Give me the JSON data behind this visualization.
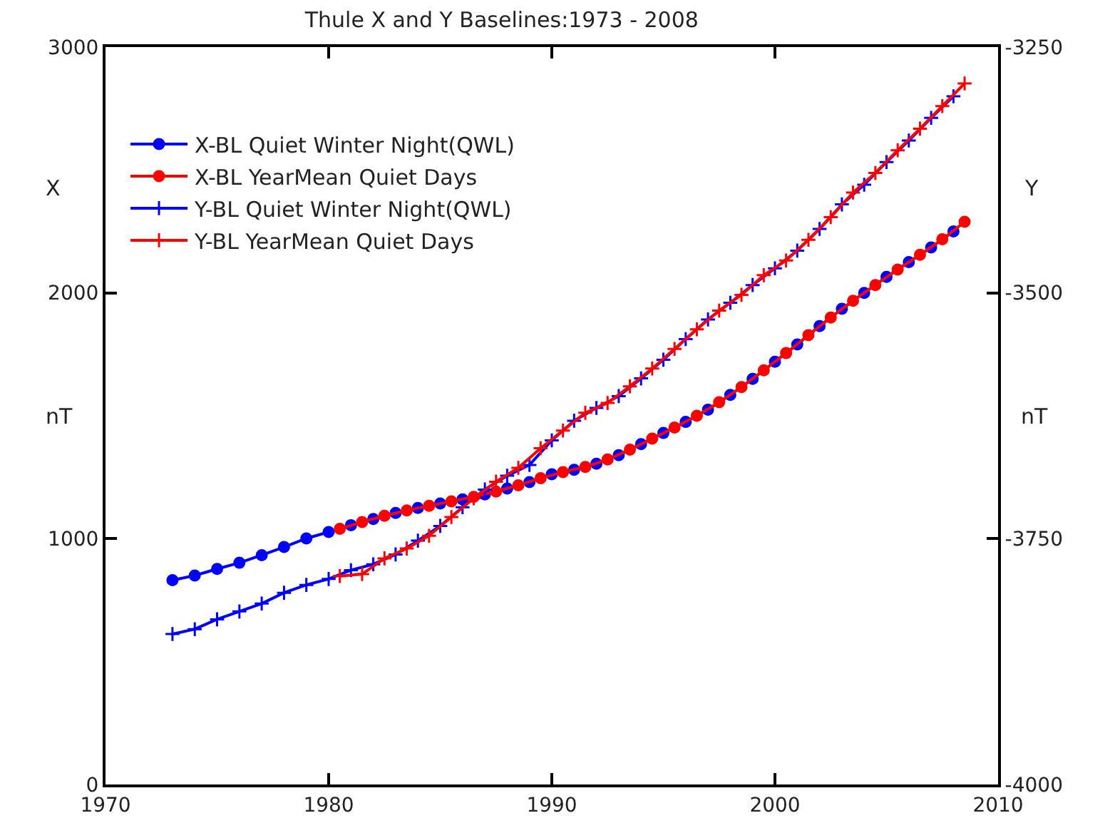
{
  "chart_data": {
    "type": "line",
    "title": "Thule X and Y Baselines:1973 - 2008",
    "ylabel": "X",
    "y2label": "Y",
    "annotations": [
      "nT",
      "nT"
    ],
    "xlim": [
      1970,
      2010
    ],
    "xticks": [
      1970,
      1980,
      1990,
      2000,
      2010
    ],
    "ylim": [
      0,
      3000
    ],
    "yticks": [
      0,
      1000,
      2000,
      3000
    ],
    "y2lim": [
      -4000,
      -3250
    ],
    "y2ticks": [
      -4000,
      -3750,
      -3500,
      -3250
    ],
    "legend": "top left",
    "series": [
      {
        "name": "X-BL Quiet Winter Night(QWL)",
        "color": "#0000ff",
        "marker": "circle",
        "x": [
          1973,
          1974,
          1975,
          1976,
          1977,
          1978,
          1979,
          1980,
          1981,
          1982,
          1983,
          1984,
          1985,
          1986,
          1987,
          1988,
          1989,
          1990,
          1991,
          1992,
          1993,
          1994,
          1995,
          1996,
          1997,
          1998,
          1999,
          2000,
          2001,
          2002,
          2003,
          2004,
          2005,
          2006,
          2007,
          2008
        ],
        "values": [
          831,
          850,
          877,
          902,
          933,
          966,
          1001,
          1027,
          1055,
          1080,
          1105,
          1125,
          1143,
          1160,
          1180,
          1204,
          1230,
          1262,
          1280,
          1305,
          1340,
          1385,
          1430,
          1475,
          1525,
          1585,
          1650,
          1720,
          1790,
          1865,
          1935,
          2000,
          2065,
          2125,
          2185,
          2250
        ]
      },
      {
        "name": "X-BL YearMean Quiet Days",
        "color": "#ff0000",
        "marker": "circle",
        "x": [
          1980.5,
          1981.5,
          1982.5,
          1983.5,
          1984.5,
          1985.5,
          1986.5,
          1987.5,
          1988.5,
          1989.5,
          1990.5,
          1991.5,
          1992.5,
          1993.5,
          1994.5,
          1995.5,
          1996.5,
          1997.5,
          1998.5,
          1999.5,
          2000.5,
          2001.5,
          2002.5,
          2003.5,
          2004.5,
          2005.5,
          2006.5,
          2007.5,
          2008.5
        ],
        "values": [
          1040,
          1068,
          1093,
          1115,
          1134,
          1152,
          1170,
          1192,
          1217,
          1246,
          1271,
          1292,
          1322,
          1362,
          1407,
          1452,
          1500,
          1555,
          1617,
          1685,
          1755,
          1828,
          1900,
          1968,
          2032,
          2095,
          2155,
          2218,
          2289
        ]
      },
      {
        "name": "Y-BL Quiet Winter Night(QWL)",
        "color": "#0000ff",
        "marker": "cross",
        "axis": "y2",
        "x": [
          1973,
          1974,
          1975,
          1976,
          1977,
          1978,
          1979,
          1980,
          1981,
          1982,
          1983,
          1984,
          1985,
          1986,
          1987,
          1988,
          1989,
          1990,
          1991,
          1992,
          1993,
          1994,
          1995,
          1996,
          1997,
          1998,
          1999,
          2000,
          2001,
          2002,
          2003,
          2004,
          2005,
          2006,
          2007,
          2008
        ],
        "values": [
          -3847,
          -3842,
          -3832,
          -3824,
          -3816,
          -3805,
          -3797,
          -3791,
          -3782,
          -3776,
          -3766,
          -3752,
          -3737,
          -3718,
          -3700,
          -3686,
          -3675,
          -3650,
          -3630,
          -3617,
          -3605,
          -3587,
          -3568,
          -3547,
          -3527,
          -3510,
          -3492,
          -3475,
          -3457,
          -3435,
          -3410,
          -3390,
          -3367,
          -3345,
          -3322,
          -3300
        ]
      },
      {
        "name": "Y-BL YearMean Quiet Days",
        "color": "#ff0000",
        "marker": "cross",
        "axis": "y2",
        "x": [
          1980.5,
          1981.5,
          1982.5,
          1983.5,
          1984.5,
          1985.5,
          1986.5,
          1987.5,
          1988.5,
          1989.5,
          1990.5,
          1991.5,
          1992.5,
          1993.5,
          1994.5,
          1995.5,
          1996.5,
          1997.5,
          1998.5,
          1999.5,
          2000.5,
          2001.5,
          2002.5,
          2003.5,
          2004.5,
          2005.5,
          2006.5,
          2007.5,
          2008.5
        ],
        "values": [
          -3788,
          -3786,
          -3770,
          -3760,
          -3747,
          -3728,
          -3709,
          -3692,
          -3678,
          -3658,
          -3640,
          -3622,
          -3612,
          -3595,
          -3577,
          -3557,
          -3537,
          -3518,
          -3502,
          -3482,
          -3467,
          -3446,
          -3423,
          -3398,
          -3378,
          -3355,
          -3333,
          -3310,
          -3287
        ]
      }
    ]
  }
}
